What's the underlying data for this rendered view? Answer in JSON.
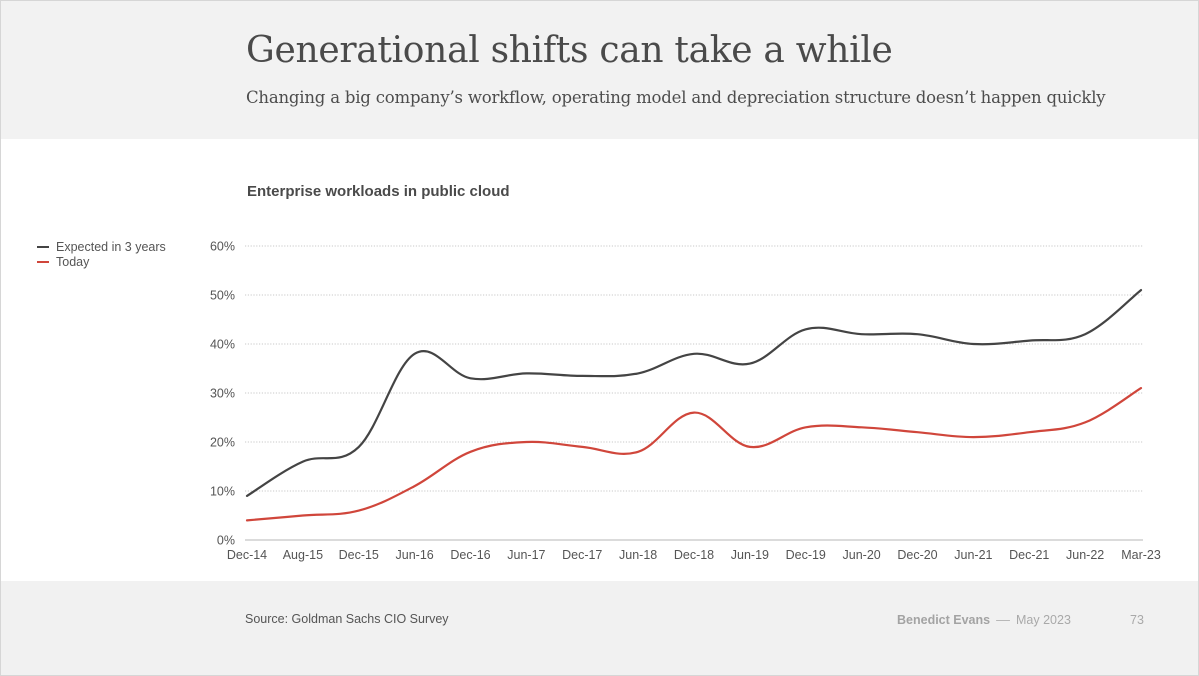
{
  "header": {
    "title": "Generational shifts can take a while",
    "subtitle": "Changing a big company’s workflow, operating model and depreciation structure doesn’t happen quickly"
  },
  "footer": {
    "source": "Source: Goldman Sachs CIO Survey",
    "author": "Benedict Evans",
    "separator": "––",
    "date": "May 2023",
    "page": "73"
  },
  "colors": {
    "header_bg": "#f2f2f2",
    "expected": "#444444",
    "today": "#d0463b",
    "grid": "#c8c8c8"
  },
  "chart_data": {
    "type": "line",
    "title": "Enterprise workloads in public cloud",
    "xlabel": "",
    "ylabel": "",
    "ylim": [
      0,
      60
    ],
    "yticks": [
      0,
      10,
      20,
      30,
      40,
      50,
      60
    ],
    "ytick_labels": [
      "0%",
      "10%",
      "20%",
      "30%",
      "40%",
      "50%",
      "60%"
    ],
    "grid": true,
    "legend_position": "left",
    "categories": [
      "Dec-14",
      "Aug-15",
      "Dec-15",
      "Jun-16",
      "Dec-16",
      "Jun-17",
      "Dec-17",
      "Jun-18",
      "Dec-18",
      "Jun-19",
      "Dec-19",
      "Jun-20",
      "Dec-20",
      "Jun-21",
      "Dec-21",
      "Jun-22",
      "Mar-23"
    ],
    "series": [
      {
        "name": "Expected in 3 years",
        "color": "#444444",
        "values": [
          9,
          16,
          19,
          38,
          33,
          34,
          33.5,
          34,
          38,
          36,
          43,
          42,
          42,
          40,
          40.7,
          42,
          51
        ]
      },
      {
        "name": "Today",
        "color": "#d0463b",
        "values": [
          4,
          5,
          6,
          11,
          18,
          20,
          19,
          18,
          26,
          19,
          23,
          23,
          22,
          21,
          22,
          24,
          31
        ]
      }
    ]
  }
}
